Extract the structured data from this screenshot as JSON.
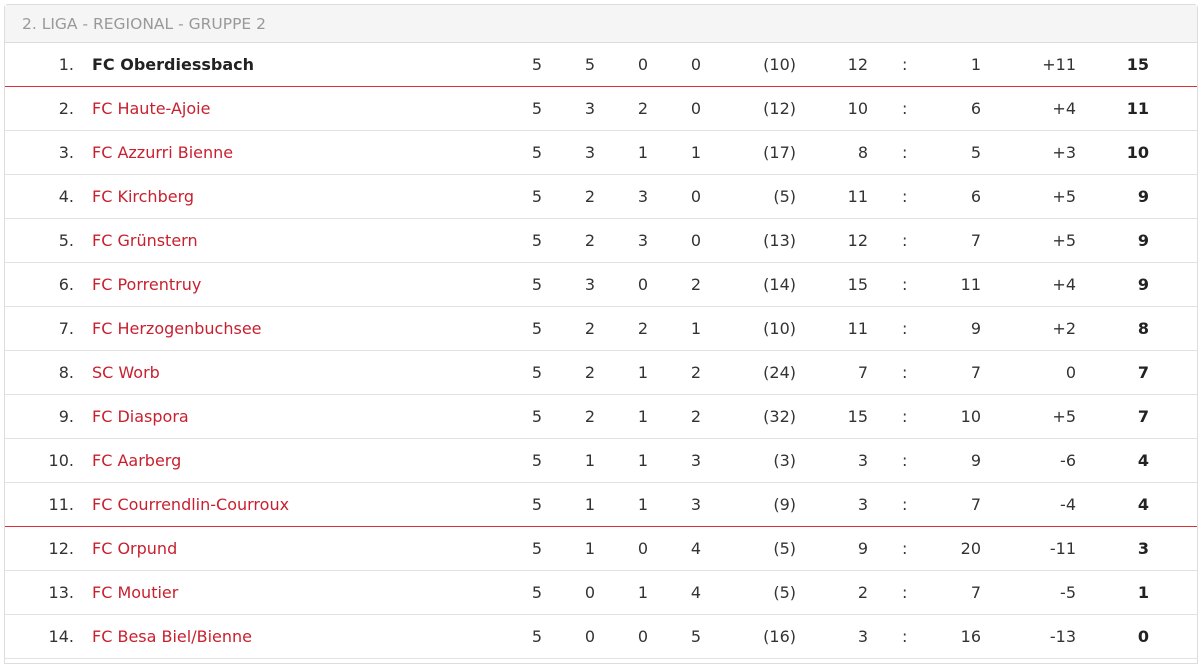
{
  "header": {
    "title": "2. LIGA - REGIONAL - GRUPPE 2"
  },
  "colors": {
    "accent": "#c8202f",
    "separator": "#d9303e"
  },
  "rows": [
    {
      "rank": "1.",
      "team": "FC Oberdiessbach",
      "played": "5",
      "won": "5",
      "drawn": "0",
      "lost": "0",
      "fairplay": "(10)",
      "gf": "12",
      "sep": ":",
      "ga": "1",
      "diff": "+11",
      "pts": "15"
    },
    {
      "rank": "2.",
      "team": "FC Haute-Ajoie",
      "played": "5",
      "won": "3",
      "drawn": "2",
      "lost": "0",
      "fairplay": "(12)",
      "gf": "10",
      "sep": ":",
      "ga": "6",
      "diff": "+4",
      "pts": "11"
    },
    {
      "rank": "3.",
      "team": "FC Azzurri Bienne",
      "played": "5",
      "won": "3",
      "drawn": "1",
      "lost": "1",
      "fairplay": "(17)",
      "gf": "8",
      "sep": ":",
      "ga": "5",
      "diff": "+3",
      "pts": "10"
    },
    {
      "rank": "4.",
      "team": "FC Kirchberg",
      "played": "5",
      "won": "2",
      "drawn": "3",
      "lost": "0",
      "fairplay": "(5)",
      "gf": "11",
      "sep": ":",
      "ga": "6",
      "diff": "+5",
      "pts": "9"
    },
    {
      "rank": "5.",
      "team": "FC Grünstern",
      "played": "5",
      "won": "2",
      "drawn": "3",
      "lost": "0",
      "fairplay": "(13)",
      "gf": "12",
      "sep": ":",
      "ga": "7",
      "diff": "+5",
      "pts": "9"
    },
    {
      "rank": "6.",
      "team": "FC Porrentruy",
      "played": "5",
      "won": "3",
      "drawn": "0",
      "lost": "2",
      "fairplay": "(14)",
      "gf": "15",
      "sep": ":",
      "ga": "11",
      "diff": "+4",
      "pts": "9"
    },
    {
      "rank": "7.",
      "team": "FC Herzogenbuchsee",
      "played": "5",
      "won": "2",
      "drawn": "2",
      "lost": "1",
      "fairplay": "(10)",
      "gf": "11",
      "sep": ":",
      "ga": "9",
      "diff": "+2",
      "pts": "8"
    },
    {
      "rank": "8.",
      "team": "SC Worb",
      "played": "5",
      "won": "2",
      "drawn": "1",
      "lost": "2",
      "fairplay": "(24)",
      "gf": "7",
      "sep": ":",
      "ga": "7",
      "diff": "0",
      "pts": "7"
    },
    {
      "rank": "9.",
      "team": "FC Diaspora",
      "played": "5",
      "won": "2",
      "drawn": "1",
      "lost": "2",
      "fairplay": "(32)",
      "gf": "15",
      "sep": ":",
      "ga": "10",
      "diff": "+5",
      "pts": "7"
    },
    {
      "rank": "10.",
      "team": "FC Aarberg",
      "played": "5",
      "won": "1",
      "drawn": "1",
      "lost": "3",
      "fairplay": "(3)",
      "gf": "3",
      "sep": ":",
      "ga": "9",
      "diff": "-6",
      "pts": "4"
    },
    {
      "rank": "11.",
      "team": "FC Courrendlin-Courroux",
      "played": "5",
      "won": "1",
      "drawn": "1",
      "lost": "3",
      "fairplay": "(9)",
      "gf": "3",
      "sep": ":",
      "ga": "7",
      "diff": "-4",
      "pts": "4"
    },
    {
      "rank": "12.",
      "team": "FC Orpund",
      "played": "5",
      "won": "1",
      "drawn": "0",
      "lost": "4",
      "fairplay": "(5)",
      "gf": "9",
      "sep": ":",
      "ga": "20",
      "diff": "-11",
      "pts": "3"
    },
    {
      "rank": "13.",
      "team": "FC Moutier",
      "played": "5",
      "won": "0",
      "drawn": "1",
      "lost": "4",
      "fairplay": "(5)",
      "gf": "2",
      "sep": ":",
      "ga": "7",
      "diff": "-5",
      "pts": "1"
    },
    {
      "rank": "14.",
      "team": "FC Besa Biel/Bienne",
      "played": "5",
      "won": "0",
      "drawn": "0",
      "lost": "5",
      "fairplay": "(16)",
      "gf": "3",
      "sep": ":",
      "ga": "16",
      "diff": "-13",
      "pts": "0"
    }
  ]
}
